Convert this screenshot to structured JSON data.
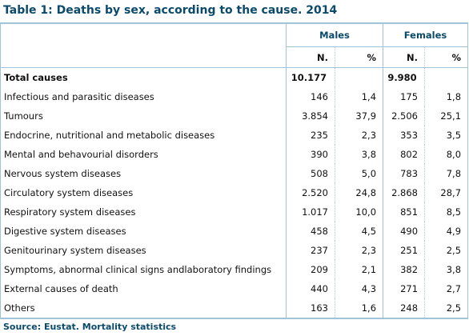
{
  "title": "Table 1: Deaths by sex, according to the cause. 2014",
  "headers": {
    "males": "Males",
    "females": "Females",
    "n": "N.",
    "pct": "%"
  },
  "total": {
    "label": "Total causes",
    "males_n": "10.177",
    "females_n": "9.980"
  },
  "rows": [
    {
      "label": "Infectious and parasitic diseases",
      "mn": "146",
      "mp": "1,4",
      "fn": "175",
      "fp": "1,8"
    },
    {
      "label": "Tumours",
      "mn": "3.854",
      "mp": "37,9",
      "fn": "2.506",
      "fp": "25,1"
    },
    {
      "label": "Endocrine, nutritional and metabolic diseases",
      "mn": "235",
      "mp": "2,3",
      "fn": "353",
      "fp": "3,5"
    },
    {
      "label": "Mental and behavourial disorders",
      "mn": "390",
      "mp": "3,8",
      "fn": "802",
      "fp": "8,0"
    },
    {
      "label": "Nervous system diseases",
      "mn": "508",
      "mp": "5,0",
      "fn": "783",
      "fp": "7,8"
    },
    {
      "label": "Circulatory system diseases",
      "mn": "2.520",
      "mp": "24,8",
      "fn": "2.868",
      "fp": "28,7"
    },
    {
      "label": "Respiratory system diseases",
      "mn": "1.017",
      "mp": "10,0",
      "fn": "851",
      "fp": "8,5"
    },
    {
      "label": "Digestive system diseases",
      "mn": "458",
      "mp": "4,5",
      "fn": "490",
      "fp": "4,9"
    },
    {
      "label": "Genitourinary system diseases",
      "mn": "237",
      "mp": "2,3",
      "fn": "251",
      "fp": "2,5"
    },
    {
      "label": "Symptoms, abnormal clinical signs andlaboratory findings",
      "mn": "209",
      "mp": "2,1",
      "fn": "382",
      "fp": "3,8"
    },
    {
      "label": "External causes of death",
      "mn": "440",
      "mp": "4,3",
      "fn": "271",
      "fp": "2,7"
    },
    {
      "label": "Others",
      "mn": "163",
      "mp": "1,6",
      "fn": "248",
      "fp": "2,5"
    }
  ],
  "source": "Source: Eustat. Mortality statistics",
  "colors": {
    "accent": "#0b4a6b",
    "rule": "#9fc3d7"
  }
}
